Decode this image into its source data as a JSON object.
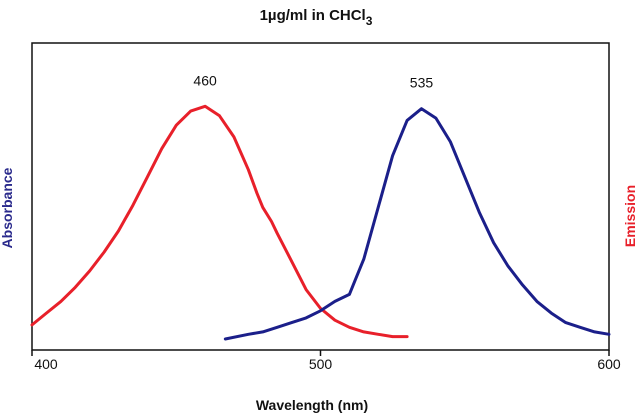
{
  "chart_data": {
    "type": "line",
    "title": "1µg/ml in CHCl",
    "title_subscript": "3",
    "xlabel": "Wavelength (nm)",
    "ylabel_left": "Absorbance",
    "ylabel_right": "Emission",
    "xlim": [
      400,
      600
    ],
    "ylim": [
      0,
      1
    ],
    "x_ticks": [
      "400",
      "500",
      "600"
    ],
    "grid": false,
    "colors": {
      "absorbance": "#e8202a",
      "emission": "#1b1f8a",
      "left_label": "#2a2a8c",
      "right_label": "#e8202a"
    },
    "annotations": [
      {
        "text": "460",
        "x": 460,
        "series": "absorbance"
      },
      {
        "text": "535",
        "x": 535,
        "series": "emission"
      }
    ],
    "series": [
      {
        "key": "absorbance",
        "x": [
          400,
          405,
          410,
          415,
          420,
          425,
          430,
          435,
          440,
          445,
          450,
          455,
          460,
          465,
          470,
          475,
          478,
          480,
          483,
          485,
          490,
          495,
          500,
          505,
          510,
          515,
          520,
          525,
          530
        ],
        "values": [
          0.06,
          0.11,
          0.16,
          0.22,
          0.29,
          0.37,
          0.46,
          0.57,
          0.69,
          0.81,
          0.91,
          0.97,
          0.99,
          0.95,
          0.86,
          0.72,
          0.62,
          0.56,
          0.5,
          0.45,
          0.33,
          0.21,
          0.13,
          0.08,
          0.05,
          0.03,
          0.02,
          0.01,
          0.01
        ]
      },
      {
        "key": "emission",
        "x": [
          467,
          475,
          480,
          485,
          490,
          495,
          500,
          505,
          510,
          512,
          515,
          520,
          525,
          530,
          535,
          540,
          545,
          550,
          555,
          560,
          565,
          570,
          575,
          580,
          585,
          590,
          595,
          600
        ],
        "values": [
          0.0,
          0.02,
          0.03,
          0.05,
          0.07,
          0.09,
          0.12,
          0.16,
          0.19,
          0.25,
          0.34,
          0.56,
          0.78,
          0.93,
          0.98,
          0.94,
          0.84,
          0.69,
          0.54,
          0.41,
          0.31,
          0.23,
          0.16,
          0.11,
          0.07,
          0.05,
          0.03,
          0.02
        ]
      }
    ]
  }
}
